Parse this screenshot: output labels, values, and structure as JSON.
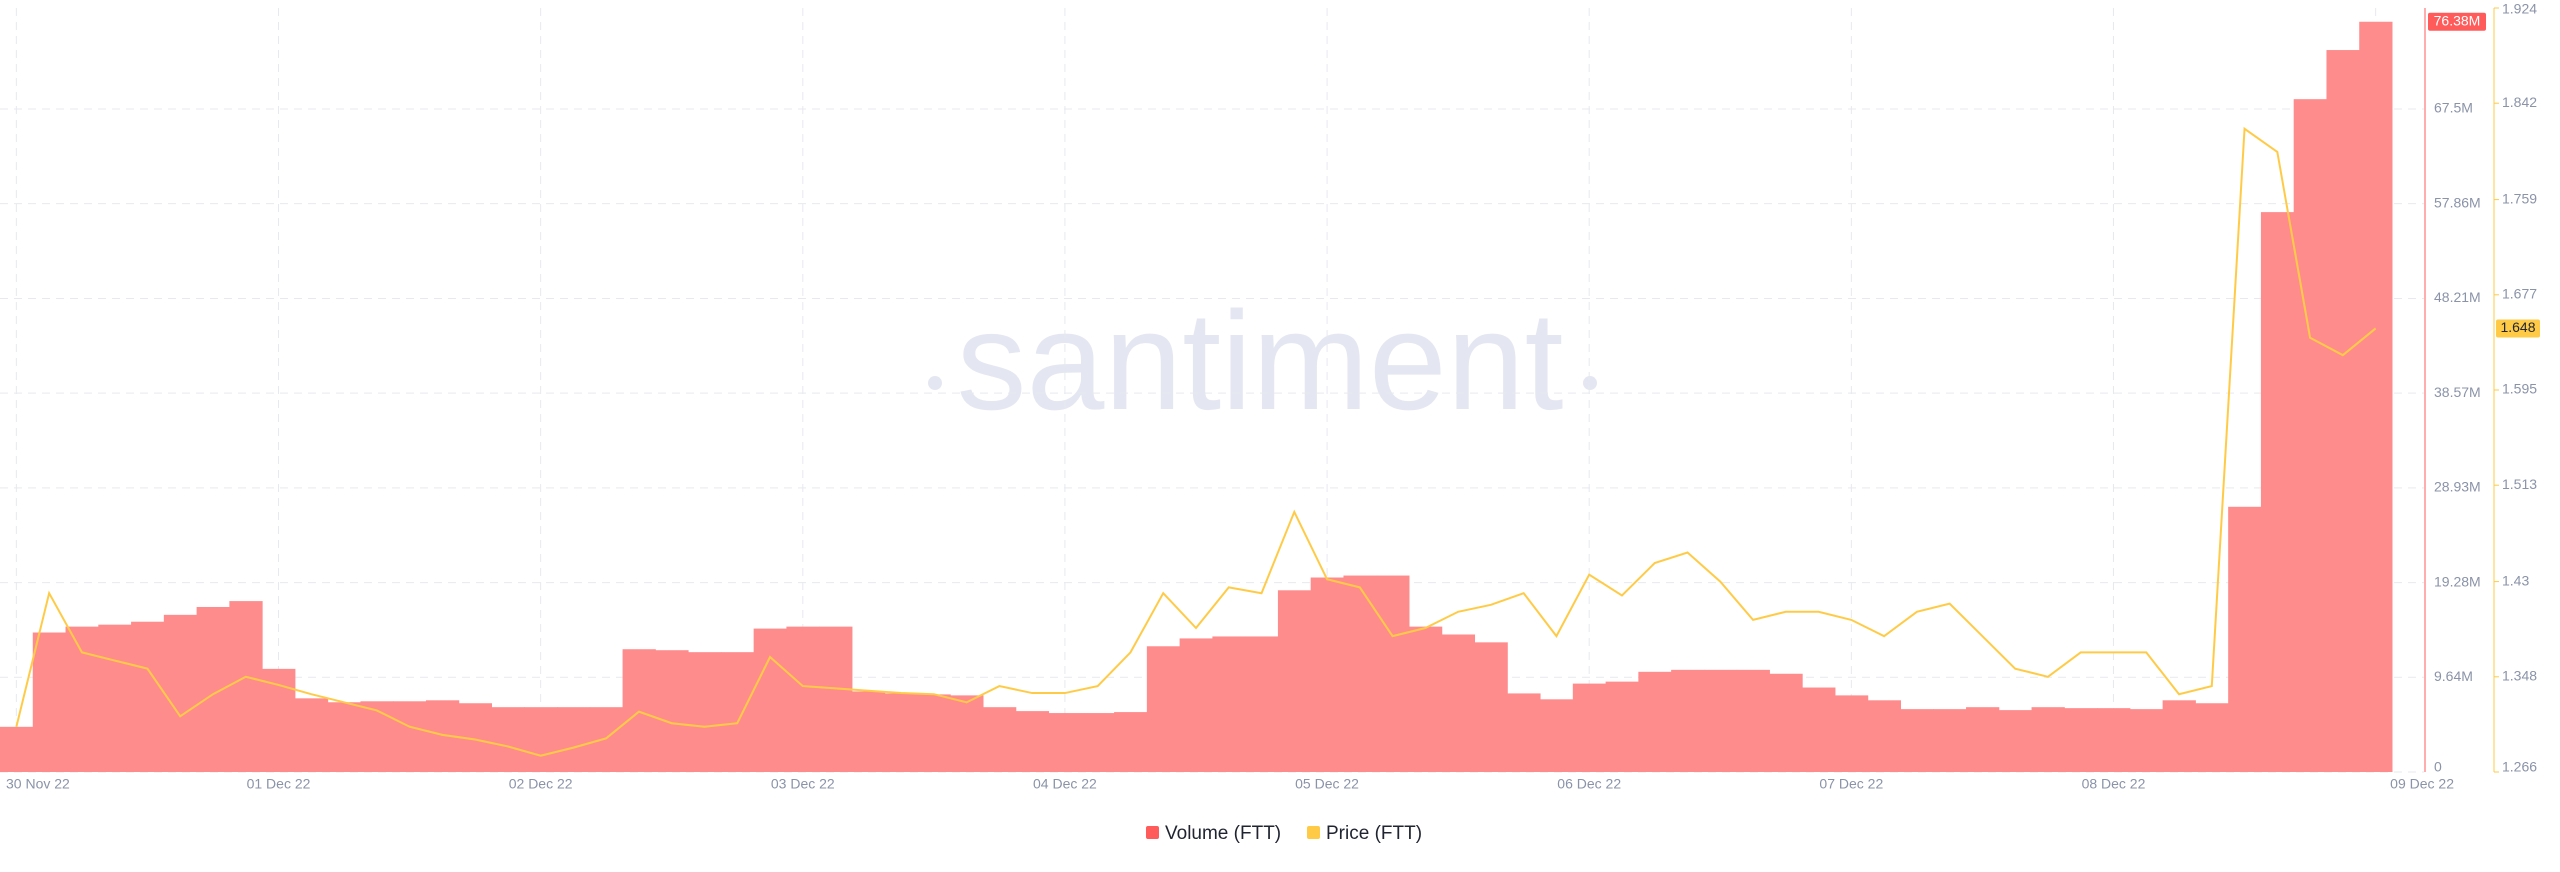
{
  "chart_data": {
    "type": "bar-line",
    "watermark": "santiment",
    "categories": [
      "30 Nov 22",
      null,
      null,
      null,
      null,
      null,
      null,
      null,
      "01 Dec 22",
      null,
      null,
      null,
      null,
      null,
      null,
      null,
      "02 Dec 22",
      null,
      null,
      null,
      null,
      null,
      null,
      null,
      "03 Dec 22",
      null,
      null,
      null,
      null,
      null,
      null,
      null,
      "04 Dec 22",
      null,
      null,
      null,
      null,
      null,
      null,
      null,
      "05 Dec 22",
      null,
      null,
      null,
      null,
      null,
      null,
      null,
      "06 Dec 22",
      null,
      null,
      null,
      null,
      null,
      null,
      null,
      "07 Dec 22",
      null,
      null,
      null,
      null,
      null,
      null,
      null,
      "08 Dec 22",
      null,
      null,
      null,
      null,
      null,
      null,
      null,
      "09 Dec 22"
    ],
    "series": [
      {
        "name": "Volume (FTT)",
        "color": "#ff8c8c",
        "legend_color": "#ff5b5b",
        "axis": "y",
        "current_label": "76.38M",
        "values": [
          4600000,
          14200000,
          14800000,
          15000000,
          15300000,
          16000000,
          16800000,
          17400000,
          10500000,
          7500000,
          7100000,
          7200000,
          7200000,
          7300000,
          7000000,
          6600000,
          6600000,
          6600000,
          6600000,
          12500000,
          12400000,
          12200000,
          12200000,
          14600000,
          14800000,
          14800000,
          8200000,
          8000000,
          7900000,
          7800000,
          6600000,
          6200000,
          6000000,
          6000000,
          6100000,
          12800000,
          13600000,
          13800000,
          13800000,
          18500000,
          19800000,
          20000000,
          20000000,
          14800000,
          14000000,
          13200000,
          8000000,
          7400000,
          9000000,
          9200000,
          10200000,
          10400000,
          10400000,
          10400000,
          10000000,
          8600000,
          7800000,
          7300000,
          6400000,
          6400000,
          6600000,
          6300000,
          6600000,
          6500000,
          6500000,
          6400000,
          7300000,
          7000000,
          27000000,
          57000000,
          68500000,
          73500000,
          76380000
        ]
      },
      {
        "name": "Price (FTT)",
        "color": "#ffcb47",
        "legend_color": "#ffcb47",
        "axis": "y2",
        "values": [
          1.305,
          1.42,
          1.369,
          1.362,
          1.355,
          1.314,
          1.333,
          1.348,
          1.341,
          1.333,
          1.326,
          1.319,
          1.305,
          1.298,
          1.294,
          1.288,
          1.28,
          1.287,
          1.295,
          1.318,
          1.308,
          1.305,
          1.308,
          1.365,
          1.34,
          1.338,
          1.336,
          1.334,
          1.333,
          1.326,
          1.34,
          1.334,
          1.334,
          1.34,
          1.369,
          1.42,
          1.39,
          1.425,
          1.42,
          1.49,
          1.432,
          1.425,
          1.383,
          1.39,
          1.404,
          1.41,
          1.42,
          1.383,
          1.436,
          1.418,
          1.446,
          1.455,
          1.43,
          1.397,
          1.404,
          1.404,
          1.397,
          1.383,
          1.404,
          1.411,
          1.383,
          1.355,
          1.348,
          1.369,
          1.369,
          1.369,
          1.333,
          1.34,
          1.82,
          1.8,
          1.64,
          1.625,
          1.648
        ]
      }
    ],
    "ylim": [
      0,
      77780000
    ],
    "yticks": [
      0,
      {
        "value": 9640000,
        "label": "9.64M"
      },
      {
        "value": 19280000,
        "label": "19.28M"
      },
      {
        "value": 28930000,
        "label": "28.93M"
      },
      {
        "value": 38570000,
        "label": "38.57M"
      },
      {
        "value": 48210000,
        "label": "48.21M"
      },
      {
        "value": 57860000,
        "label": "57.86M"
      },
      {
        "value": 67500000,
        "label": "67.5M"
      }
    ],
    "y2lim": [
      1.266,
      1.924
    ],
    "y2ticks": [
      1.266,
      1.348,
      1.43,
      1.513,
      1.595,
      1.677,
      1.759,
      1.842,
      1.924
    ],
    "grid": true
  }
}
